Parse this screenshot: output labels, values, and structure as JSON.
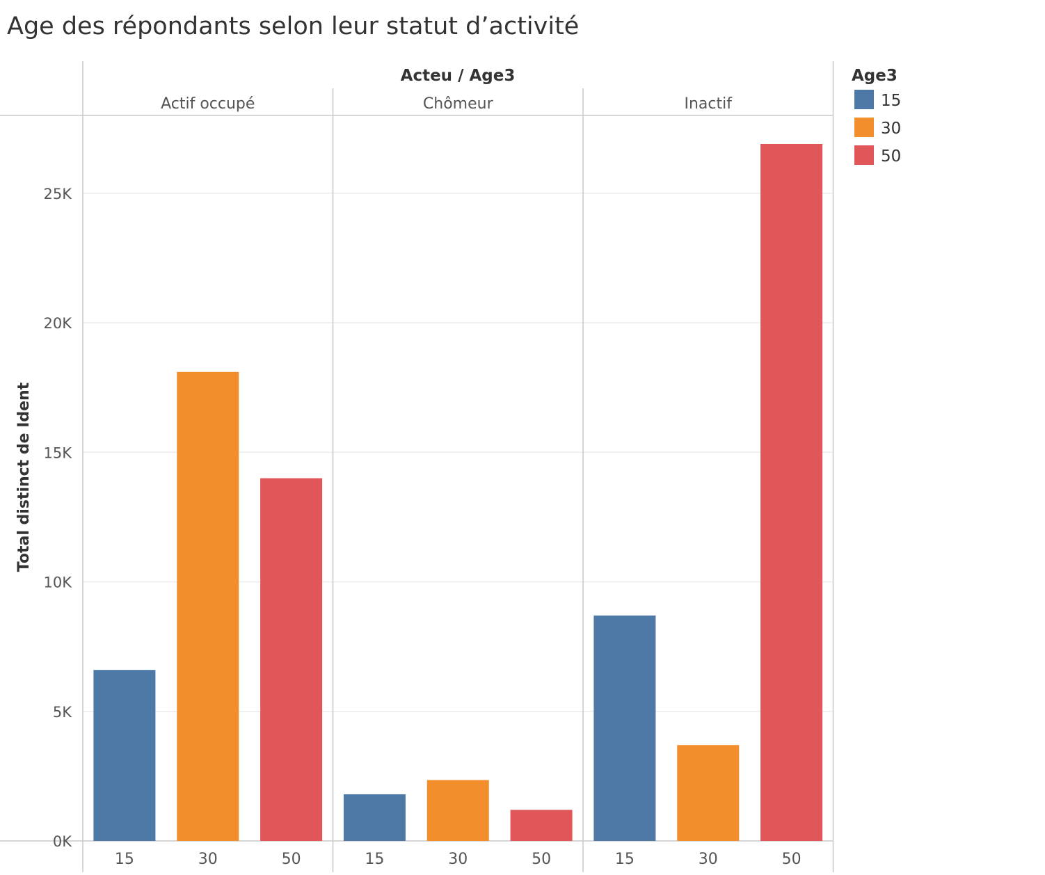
{
  "chart_data": {
    "type": "bar",
    "title": "Age des répondants selon leur statut d’activité",
    "column_header": "Acteu / Age3",
    "ylabel": "Total distinct de Ident",
    "ylim": [
      0,
      28000
    ],
    "yticks": [
      {
        "value": 0,
        "label": "0K"
      },
      {
        "value": 5000,
        "label": "5K"
      },
      {
        "value": 10000,
        "label": "10K"
      },
      {
        "value": 15000,
        "label": "15K"
      },
      {
        "value": 20000,
        "label": "20K"
      },
      {
        "value": 25000,
        "label": "25K"
      }
    ],
    "grid": true,
    "categories": [
      "15",
      "30",
      "50"
    ],
    "panels": [
      {
        "name": "Actif occupé",
        "values": [
          6600,
          18100,
          14000
        ]
      },
      {
        "name": "Chômeur",
        "values": [
          1800,
          2350,
          1200
        ]
      },
      {
        "name": "Inactif",
        "values": [
          8700,
          3700,
          26900
        ]
      }
    ],
    "legend": {
      "title": "Age3",
      "placement": "right",
      "items": [
        {
          "label": "15",
          "color": "#4e79a7"
        },
        {
          "label": "30",
          "color": "#f28e2b"
        },
        {
          "label": "50",
          "color": "#e15759"
        }
      ]
    }
  }
}
